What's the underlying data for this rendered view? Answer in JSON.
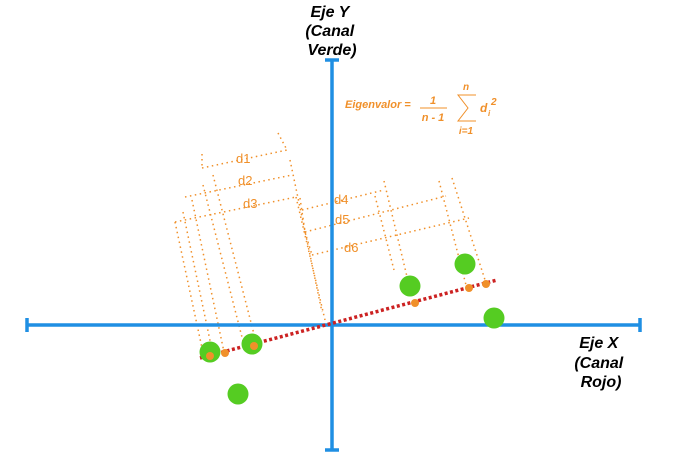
{
  "colors": {
    "axis": "#1f8fe3",
    "point": "#55cc22",
    "projection": "#f0902a",
    "guide": "#f0902a",
    "principal_line": "#cc2222"
  },
  "axes": {
    "y_label": [
      "Eje Y",
      "(Canal",
      "Verde)"
    ],
    "x_label": [
      "Eje X",
      "(Canal",
      "Rojo)"
    ]
  },
  "formula": {
    "prefix": "Eigenvalor =",
    "numerator": "1",
    "denominator": "n - 1",
    "sum_top": "n",
    "sum_bottom": "i=1",
    "term": "d",
    "term_sub": "i",
    "term_sup": "2"
  },
  "distances": [
    "d1",
    "d2",
    "d3",
    "d4",
    "d5",
    "d6"
  ]
}
